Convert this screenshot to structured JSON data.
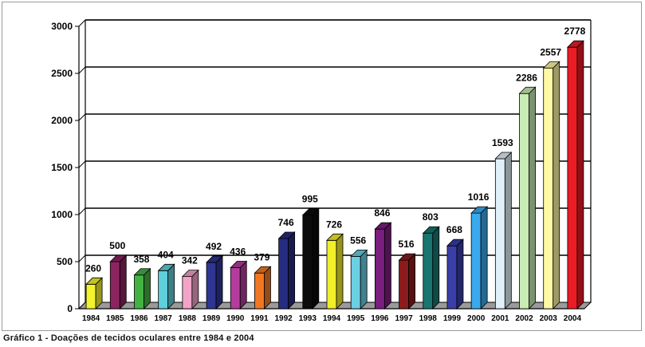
{
  "caption": "Gráfico 1 - Doações de tecidos oculares entre 1984 e 2004",
  "chart_data": {
    "type": "bar",
    "title": "",
    "xlabel": "",
    "ylabel": "",
    "ylim": [
      0,
      3000
    ],
    "yticks": [
      0,
      500,
      1000,
      1500,
      2000,
      2500,
      3000
    ],
    "grid": true,
    "style": "3d",
    "categories": [
      "1984",
      "1985",
      "1986",
      "1987",
      "1988",
      "1989",
      "1990",
      "1991",
      "1992",
      "1993",
      "1994",
      "1995",
      "1996",
      "1997",
      "1998",
      "1999",
      "2000",
      "2001",
      "2002",
      "2003",
      "2004"
    ],
    "values": [
      260,
      500,
      358,
      404,
      342,
      492,
      436,
      379,
      746,
      995,
      726,
      556,
      846,
      516,
      803,
      668,
      1016,
      1593,
      2286,
      2557,
      2778
    ],
    "colors": [
      "#f2f22e",
      "#8c2460",
      "#43b243",
      "#5fcfdb",
      "#f2a4c8",
      "#2e3592",
      "#b43c9c",
      "#f27722",
      "#262c82",
      "#0c0c0c",
      "#f2ee2a",
      "#6bd0e4",
      "#7a1e80",
      "#8c1c1c",
      "#197570",
      "#3a3ea8",
      "#3aaaee",
      "#e0f0f8",
      "#c8ecb4",
      "#fff8a4",
      "#ec1c24"
    ]
  }
}
